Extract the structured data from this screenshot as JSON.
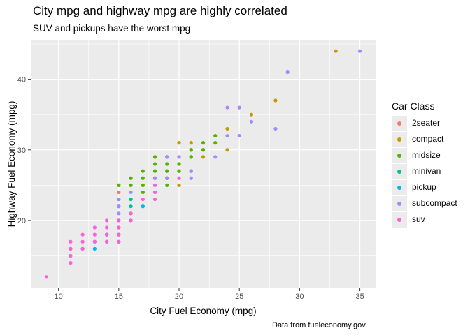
{
  "chart_data": {
    "type": "scatter",
    "title": "City mpg and highway mpg are highly correlated",
    "subtitle": "SUV and pickups have the worst mpg",
    "caption": "Data from fueleconomy.gov",
    "xlabel": "City Fuel Economy (mpg)",
    "ylabel": "Highway Fuel Economy (mpg)",
    "xlim": [
      7.7,
      36.3
    ],
    "ylim": [
      10.4,
      45.6
    ],
    "xticks": [
      10,
      15,
      20,
      25,
      30,
      35
    ],
    "yticks": [
      20,
      30,
      40
    ],
    "grid": true,
    "legend": {
      "title": "Car Class",
      "position": "right"
    },
    "series": [
      {
        "name": "2seater",
        "color": "#F8766D",
        "points": [
          [
            15,
            23
          ],
          [
            15,
            24
          ],
          [
            15,
            25
          ],
          [
            16,
            26
          ]
        ]
      },
      {
        "name": "compact",
        "color": "#C49A00",
        "points": [
          [
            18,
            27
          ],
          [
            18,
            29
          ],
          [
            18,
            26
          ],
          [
            16,
            23
          ],
          [
            16,
            25
          ],
          [
            17,
            24
          ],
          [
            19,
            26
          ],
          [
            19,
            27
          ],
          [
            20,
            28
          ],
          [
            20,
            31
          ],
          [
            20,
            27
          ],
          [
            20,
            25
          ],
          [
            21,
            29
          ],
          [
            21,
            31
          ],
          [
            21,
            30
          ],
          [
            22,
            29
          ],
          [
            22,
            30
          ],
          [
            24,
            30
          ],
          [
            24,
            33
          ],
          [
            26,
            35
          ],
          [
            28,
            37
          ],
          [
            33,
            44
          ],
          [
            19,
            29
          ],
          [
            17,
            25
          ]
        ]
      },
      {
        "name": "midsize",
        "color": "#53B400",
        "points": [
          [
            15,
            25
          ],
          [
            16,
            26
          ],
          [
            17,
            24
          ],
          [
            17,
            25
          ],
          [
            17,
            26
          ],
          [
            17,
            27
          ],
          [
            18,
            26
          ],
          [
            18,
            27
          ],
          [
            18,
            28
          ],
          [
            18,
            29
          ],
          [
            19,
            26
          ],
          [
            19,
            27
          ],
          [
            19,
            28
          ],
          [
            19,
            29
          ],
          [
            20,
            27
          ],
          [
            20,
            28
          ],
          [
            21,
            29
          ],
          [
            21,
            30
          ],
          [
            22,
            30
          ],
          [
            22,
            31
          ],
          [
            23,
            31
          ],
          [
            23,
            32
          ],
          [
            21,
            27
          ],
          [
            16,
            25
          ],
          [
            19,
            25
          ]
        ]
      },
      {
        "name": "minivan",
        "color": "#00C094",
        "points": [
          [
            16,
            22
          ],
          [
            16,
            23
          ],
          [
            17,
            22
          ],
          [
            18,
            24
          ],
          [
            15,
            22
          ],
          [
            14,
            18
          ],
          [
            16,
            21
          ]
        ]
      },
      {
        "name": "pickup",
        "color": "#00B6EB",
        "points": [
          [
            12,
            16
          ],
          [
            13,
            16
          ],
          [
            13,
            17
          ],
          [
            14,
            17
          ],
          [
            14,
            18
          ],
          [
            15,
            17
          ],
          [
            15,
            18
          ],
          [
            15,
            19
          ],
          [
            15,
            20
          ],
          [
            16,
            20
          ],
          [
            17,
            22
          ],
          [
            11,
            15
          ],
          [
            11,
            16
          ]
        ]
      },
      {
        "name": "subcompact",
        "color": "#A58AFF",
        "points": [
          [
            15,
            21
          ],
          [
            15,
            22
          ],
          [
            15,
            23
          ],
          [
            16,
            24
          ],
          [
            18,
            25
          ],
          [
            18,
            26
          ],
          [
            19,
            26
          ],
          [
            19,
            29
          ],
          [
            20,
            29
          ],
          [
            21,
            26
          ],
          [
            21,
            27
          ],
          [
            23,
            29
          ],
          [
            24,
            32
          ],
          [
            25,
            32
          ],
          [
            26,
            34
          ],
          [
            24,
            36
          ],
          [
            25,
            36
          ],
          [
            28,
            33
          ],
          [
            29,
            41
          ],
          [
            35,
            44
          ]
        ]
      },
      {
        "name": "suv",
        "color": "#FB61D7",
        "points": [
          [
            9,
            12
          ],
          [
            11,
            14
          ],
          [
            11,
            15
          ],
          [
            11,
            16
          ],
          [
            11,
            17
          ],
          [
            12,
            17
          ],
          [
            12,
            18
          ],
          [
            13,
            17
          ],
          [
            13,
            18
          ],
          [
            13,
            19
          ],
          [
            14,
            17
          ],
          [
            14,
            19
          ],
          [
            14,
            20
          ],
          [
            15,
            17
          ],
          [
            15,
            19
          ],
          [
            15,
            20
          ],
          [
            16,
            20
          ],
          [
            16,
            21
          ],
          [
            17,
            23
          ],
          [
            18,
            23
          ],
          [
            18,
            24
          ],
          [
            18,
            25
          ],
          [
            20,
            26
          ],
          [
            14,
            18
          ],
          [
            15,
            18
          ],
          [
            12,
            16
          ]
        ]
      }
    ]
  }
}
